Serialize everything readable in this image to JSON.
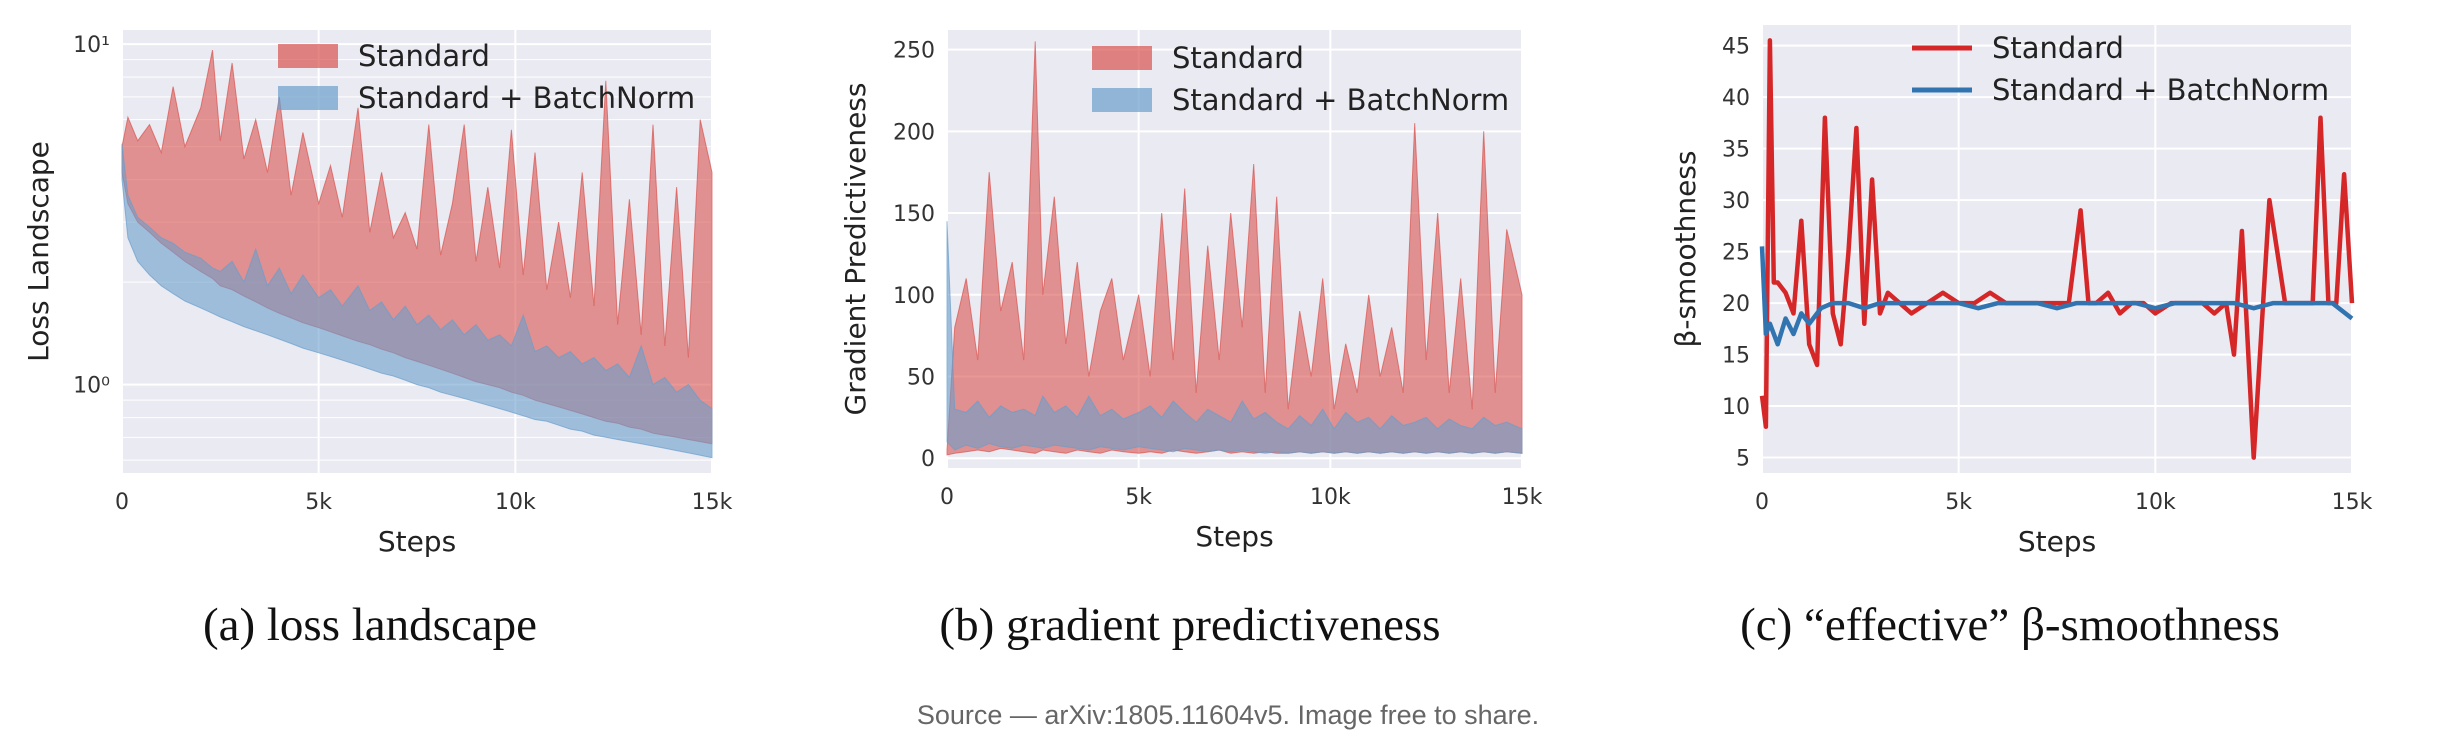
{
  "chart_data": [
    {
      "type": "area",
      "panel": "a",
      "caption": "(a) loss landscape",
      "title": "",
      "xlabel": "Steps",
      "ylabel": "Loss Landscape",
      "yscale": "log",
      "xlim": [
        0,
        15000
      ],
      "ylim": [
        0.55,
        11
      ],
      "xticks": [
        0,
        5000,
        10000,
        15000
      ],
      "xtick_labels": [
        "0",
        "5k",
        "10k",
        "15k"
      ],
      "yticks": [
        1,
        10
      ],
      "ytick_labels": [
        "10⁰",
        "10¹"
      ],
      "legend": "top-center",
      "grid": true,
      "series": [
        {
          "name": "Standard",
          "color": "#d9534f",
          "x": [
            0,
            150,
            400,
            700,
            1000,
            1300,
            1600,
            2000,
            2300,
            2500,
            2800,
            3100,
            3400,
            3700,
            4000,
            4300,
            4600,
            5000,
            5300,
            5600,
            6000,
            6300,
            6600,
            6900,
            7200,
            7500,
            7800,
            8100,
            8400,
            8700,
            9000,
            9300,
            9600,
            9900,
            10200,
            10500,
            10800,
            11100,
            11400,
            11700,
            12000,
            12300,
            12600,
            12900,
            13200,
            13500,
            13800,
            14100,
            14400,
            14700,
            15000
          ],
          "lower": [
            4.2,
            3.4,
            3.0,
            2.8,
            2.6,
            2.45,
            2.3,
            2.15,
            2.05,
            1.95,
            1.9,
            1.82,
            1.75,
            1.68,
            1.62,
            1.57,
            1.52,
            1.47,
            1.43,
            1.39,
            1.34,
            1.31,
            1.27,
            1.24,
            1.2,
            1.17,
            1.14,
            1.11,
            1.08,
            1.05,
            1.02,
            1.0,
            0.98,
            0.95,
            0.93,
            0.9,
            0.88,
            0.86,
            0.84,
            0.82,
            0.8,
            0.78,
            0.77,
            0.75,
            0.74,
            0.72,
            0.71,
            0.7,
            0.69,
            0.68,
            0.67
          ],
          "upper": [
            5.0,
            6.1,
            5.2,
            5.8,
            4.8,
            7.5,
            5.0,
            6.5,
            9.6,
            5.2,
            8.8,
            4.6,
            6.0,
            4.2,
            7.0,
            3.6,
            5.5,
            3.4,
            4.4,
            3.1,
            6.5,
            2.8,
            4.2,
            2.7,
            3.2,
            2.5,
            5.8,
            2.4,
            3.4,
            5.8,
            2.3,
            3.8,
            2.2,
            5.6,
            2.1,
            4.8,
            1.9,
            3.0,
            1.8,
            4.2,
            1.7,
            7.8,
            1.5,
            3.5,
            1.4,
            5.8,
            1.3,
            3.8,
            1.2,
            6.0,
            4.2
          ]
        },
        {
          "name": "Standard + BatchNorm",
          "color": "#6a9ecb",
          "x": [
            0,
            150,
            400,
            700,
            1000,
            1300,
            1600,
            2000,
            2300,
            2500,
            2800,
            3100,
            3400,
            3700,
            4000,
            4300,
            4600,
            5000,
            5300,
            5600,
            6000,
            6300,
            6600,
            6900,
            7200,
            7500,
            7800,
            8100,
            8400,
            8700,
            9000,
            9300,
            9600,
            9900,
            10200,
            10500,
            10800,
            11100,
            11400,
            11700,
            12000,
            12300,
            12600,
            12900,
            13200,
            13500,
            13800,
            14100,
            14400,
            14700,
            15000
          ],
          "lower": [
            4.0,
            2.7,
            2.3,
            2.1,
            1.95,
            1.85,
            1.76,
            1.68,
            1.62,
            1.58,
            1.53,
            1.48,
            1.44,
            1.4,
            1.36,
            1.32,
            1.28,
            1.24,
            1.21,
            1.18,
            1.14,
            1.11,
            1.08,
            1.06,
            1.03,
            1.0,
            0.98,
            0.95,
            0.93,
            0.91,
            0.89,
            0.87,
            0.85,
            0.83,
            0.81,
            0.79,
            0.78,
            0.76,
            0.74,
            0.73,
            0.71,
            0.7,
            0.69,
            0.68,
            0.67,
            0.66,
            0.65,
            0.64,
            0.63,
            0.62,
            0.61
          ],
          "upper": [
            5.1,
            3.6,
            3.1,
            2.9,
            2.7,
            2.6,
            2.45,
            2.35,
            2.2,
            2.15,
            2.3,
            2.0,
            2.5,
            1.95,
            2.2,
            1.85,
            2.1,
            1.8,
            1.9,
            1.7,
            1.95,
            1.65,
            1.75,
            1.55,
            1.7,
            1.5,
            1.6,
            1.45,
            1.55,
            1.4,
            1.5,
            1.35,
            1.4,
            1.3,
            1.6,
            1.25,
            1.3,
            1.2,
            1.25,
            1.15,
            1.2,
            1.1,
            1.15,
            1.05,
            1.3,
            1.0,
            1.05,
            0.95,
            1.0,
            0.9,
            0.85
          ]
        }
      ]
    },
    {
      "type": "area",
      "panel": "b",
      "caption": "(b) gradient predictiveness",
      "title": "",
      "xlabel": "Steps",
      "ylabel": "Gradient Predictiveness",
      "yscale": "linear",
      "xlim": [
        0,
        15000
      ],
      "ylim": [
        -6,
        262
      ],
      "xticks": [
        0,
        5000,
        10000,
        15000
      ],
      "xtick_labels": [
        "0",
        "5k",
        "10k",
        "15k"
      ],
      "yticks": [
        0,
        50,
        100,
        150,
        200,
        250
      ],
      "ytick_labels": [
        "0",
        "50",
        "100",
        "150",
        "200",
        "250"
      ],
      "legend": "top-center",
      "grid": true,
      "series": [
        {
          "name": "Standard",
          "color": "#d9534f",
          "x": [
            0,
            200,
            500,
            800,
            1100,
            1400,
            1700,
            2000,
            2300,
            2500,
            2800,
            3100,
            3400,
            3700,
            4000,
            4300,
            4600,
            5000,
            5300,
            5600,
            5900,
            6200,
            6500,
            6800,
            7100,
            7400,
            7700,
            8000,
            8300,
            8600,
            8900,
            9200,
            9500,
            9800,
            10100,
            10400,
            10700,
            11000,
            11300,
            11600,
            11900,
            12200,
            12500,
            12800,
            13100,
            13400,
            13700,
            14000,
            14300,
            14600,
            15000
          ],
          "lower": [
            2,
            3,
            4,
            5,
            4,
            6,
            5,
            4,
            3,
            5,
            4,
            3,
            5,
            4,
            3,
            5,
            4,
            3,
            4,
            3,
            5,
            4,
            3,
            4,
            5,
            3,
            4,
            3,
            4,
            3,
            3,
            4,
            3,
            4,
            3,
            4,
            3,
            4,
            3,
            4,
            3,
            4,
            3,
            4,
            3,
            4,
            3,
            4,
            3,
            4,
            3
          ],
          "upper": [
            5,
            80,
            110,
            60,
            175,
            90,
            120,
            60,
            255,
            100,
            160,
            70,
            120,
            50,
            90,
            110,
            60,
            100,
            50,
            150,
            60,
            165,
            40,
            130,
            60,
            150,
            80,
            180,
            40,
            160,
            30,
            90,
            50,
            110,
            30,
            70,
            40,
            100,
            50,
            80,
            40,
            205,
            60,
            150,
            40,
            110,
            30,
            200,
            40,
            140,
            100
          ]
        },
        {
          "name": "Standard + BatchNorm",
          "color": "#6a9ecb",
          "x": [
            0,
            200,
            500,
            800,
            1100,
            1400,
            1700,
            2000,
            2300,
            2500,
            2800,
            3100,
            3400,
            3700,
            4000,
            4300,
            4600,
            5000,
            5300,
            5600,
            5900,
            6200,
            6500,
            6800,
            7100,
            7400,
            7700,
            8000,
            8300,
            8600,
            8900,
            9200,
            9500,
            9800,
            10100,
            10400,
            10700,
            11000,
            11300,
            11600,
            11900,
            12200,
            12500,
            12800,
            13100,
            13400,
            13700,
            14000,
            14300,
            14600,
            15000
          ],
          "lower": [
            10,
            5,
            8,
            6,
            9,
            7,
            6,
            8,
            7,
            6,
            8,
            7,
            6,
            5,
            7,
            6,
            5,
            7,
            6,
            5,
            4,
            6,
            5,
            4,
            5,
            4,
            5,
            4,
            3,
            4,
            3,
            4,
            3,
            4,
            3,
            4,
            3,
            4,
            3,
            4,
            3,
            4,
            3,
            4,
            3,
            4,
            3,
            4,
            3,
            4,
            3
          ],
          "upper": [
            145,
            30,
            28,
            35,
            25,
            32,
            28,
            30,
            26,
            38,
            28,
            32,
            25,
            38,
            26,
            30,
            24,
            28,
            32,
            25,
            35,
            28,
            22,
            30,
            26,
            22,
            35,
            24,
            28,
            22,
            18,
            26,
            20,
            30,
            18,
            28,
            22,
            25,
            18,
            26,
            20,
            22,
            25,
            18,
            24,
            20,
            18,
            25,
            20,
            22,
            18
          ]
        }
      ]
    },
    {
      "type": "line",
      "panel": "c",
      "caption": "(c) “effective” β-smoothness",
      "title": "",
      "xlabel": "Steps",
      "ylabel": "β-smoothness",
      "yscale": "linear",
      "xlim": [
        0,
        15000
      ],
      "ylim": [
        3.5,
        47
      ],
      "xticks": [
        0,
        5000,
        10000,
        15000
      ],
      "xtick_labels": [
        "0",
        "5k",
        "10k",
        "15k"
      ],
      "yticks": [
        5,
        10,
        15,
        20,
        25,
        30,
        35,
        40,
        45
      ],
      "ytick_labels": [
        "5",
        "10",
        "15",
        "20",
        "25",
        "30",
        "35",
        "40",
        "45"
      ],
      "legend": "top-center",
      "grid": true,
      "series": [
        {
          "name": "Standard",
          "color": "#d62728",
          "x": [
            0,
            100,
            200,
            300,
            400,
            600,
            800,
            1000,
            1200,
            1400,
            1600,
            1800,
            2000,
            2200,
            2400,
            2600,
            2800,
            3000,
            3200,
            3500,
            3800,
            4200,
            4600,
            5000,
            5400,
            5800,
            6200,
            6600,
            7000,
            7400,
            7800,
            8100,
            8300,
            8500,
            8800,
            9100,
            9400,
            9700,
            10000,
            10400,
            10800,
            11200,
            11500,
            11800,
            12000,
            12200,
            12500,
            12900,
            13300,
            13700,
            14000,
            14200,
            14400,
            14600,
            14800,
            15000
          ],
          "y": [
            11,
            8,
            45.5,
            22,
            22,
            21,
            19,
            28,
            16,
            14,
            38,
            19,
            16,
            25,
            37,
            18,
            32,
            19,
            21,
            20,
            19,
            20,
            21,
            20,
            20,
            21,
            20,
            20,
            20,
            20,
            20,
            29,
            20,
            20,
            21,
            19,
            20,
            20,
            19,
            20,
            20,
            20,
            19,
            20,
            15,
            27,
            5,
            30,
            20,
            20,
            20,
            38,
            20,
            20,
            32.5,
            20
          ]
        },
        {
          "name": "Standard + BatchNorm",
          "color": "#3274b0",
          "x": [
            0,
            100,
            200,
            400,
            600,
            800,
            1000,
            1200,
            1500,
            1800,
            2200,
            2600,
            3000,
            3500,
            4000,
            4500,
            5000,
            5500,
            6000,
            6500,
            7000,
            7500,
            8000,
            8500,
            9000,
            9500,
            10000,
            10500,
            11000,
            11500,
            12000,
            12500,
            13000,
            13500,
            14000,
            14500,
            15000
          ],
          "y": [
            25.5,
            17,
            18,
            16,
            18.5,
            17,
            19,
            18,
            19.5,
            20,
            20,
            19.5,
            20,
            20,
            20,
            20,
            20,
            19.5,
            20,
            20,
            20,
            19.5,
            20,
            20,
            20,
            20,
            19.5,
            20,
            20,
            20,
            20,
            19.5,
            20,
            20,
            20,
            20,
            18.5
          ]
        }
      ]
    }
  ],
  "footer": {
    "source": "Source — arXiv:1805.11604v5. Image free to share."
  }
}
